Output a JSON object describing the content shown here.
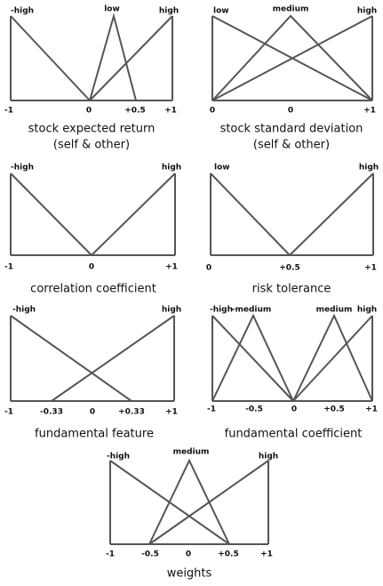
{
  "panels": [
    {
      "caption": [
        "stock expected return",
        "(self & other)"
      ],
      "terms": [
        "-high",
        "low",
        "high"
      ],
      "ticks": [
        "-1",
        "0",
        "+0.5",
        "+1"
      ]
    },
    {
      "caption": [
        "stock standard deviation",
        "(self & other)"
      ],
      "terms": [
        "low",
        "medium",
        "high"
      ],
      "ticks": [
        "0",
        "0",
        "+1"
      ]
    },
    {
      "caption": [
        "correlation coefficient"
      ],
      "terms": [
        "-high",
        "high"
      ],
      "ticks": [
        "-1",
        "0",
        "+1"
      ]
    },
    {
      "caption": [
        "risk tolerance"
      ],
      "terms": [
        "low",
        "high"
      ],
      "ticks": [
        "0",
        "+0.5",
        "+1"
      ]
    },
    {
      "caption": [
        "fundamental feature"
      ],
      "terms": [
        "-high",
        "high"
      ],
      "ticks": [
        "-1",
        "-0.33",
        "0",
        "+0.33",
        "+1"
      ]
    },
    {
      "caption": [
        "fundamental coefficient"
      ],
      "terms": [
        "-high",
        "-medium",
        "medium",
        "high"
      ],
      "ticks": [
        "-1",
        "-0.5",
        "0",
        "+0.5",
        "+1"
      ]
    },
    {
      "caption": [
        "weights"
      ],
      "terms": [
        "-high",
        "medium",
        "high"
      ],
      "ticks": [
        "-1",
        "-0.5",
        "0",
        "+0.5",
        "+1"
      ]
    }
  ]
}
